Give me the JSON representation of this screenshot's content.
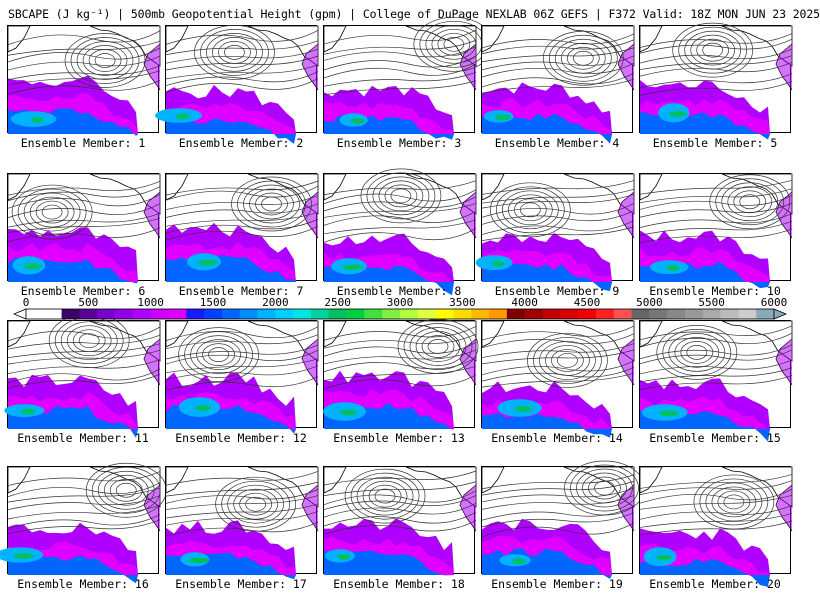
{
  "title": "SBCAPE (J kg⁻¹) | 500mb Geopotential Height (gpm) | College of DuPage NEXLAB 06Z GEFS | F372 Valid: 18Z MON JUN 23 2025",
  "member_label_prefix": "Ensemble Member: ",
  "members": [
    1,
    2,
    3,
    4,
    5,
    6,
    7,
    8,
    9,
    10,
    11,
    12,
    13,
    14,
    15,
    16,
    17,
    18,
    19,
    20
  ],
  "colorbar": {
    "ticks": [
      "0",
      "500",
      "1000",
      "1500",
      "2000",
      "2500",
      "3000",
      "3500",
      "4000",
      "4500",
      "5000",
      "5500",
      "6000"
    ],
    "colors": [
      "#ffffff",
      "#ffffff",
      "#3d0066",
      "#5c0099",
      "#7a00cc",
      "#9400e8",
      "#b000ff",
      "#cc00ff",
      "#e000ff",
      "#1a1aff",
      "#0040ff",
      "#0066ff",
      "#008cff",
      "#00b2ff",
      "#00d0ff",
      "#00e5e5",
      "#00d2a0",
      "#00c060",
      "#00d040",
      "#40e040",
      "#80f040",
      "#b0ff40",
      "#e0ff40",
      "#ffff00",
      "#ffdd00",
      "#ffbb00",
      "#ff9900",
      "#800000",
      "#a00000",
      "#c00000",
      "#d80000",
      "#f00000",
      "#ff2020",
      "#ff5050",
      "#666666",
      "#777777",
      "#888888",
      "#999999",
      "#aaaaaa",
      "#bbbbbb",
      "#cccccc",
      "#88aabb"
    ]
  }
}
